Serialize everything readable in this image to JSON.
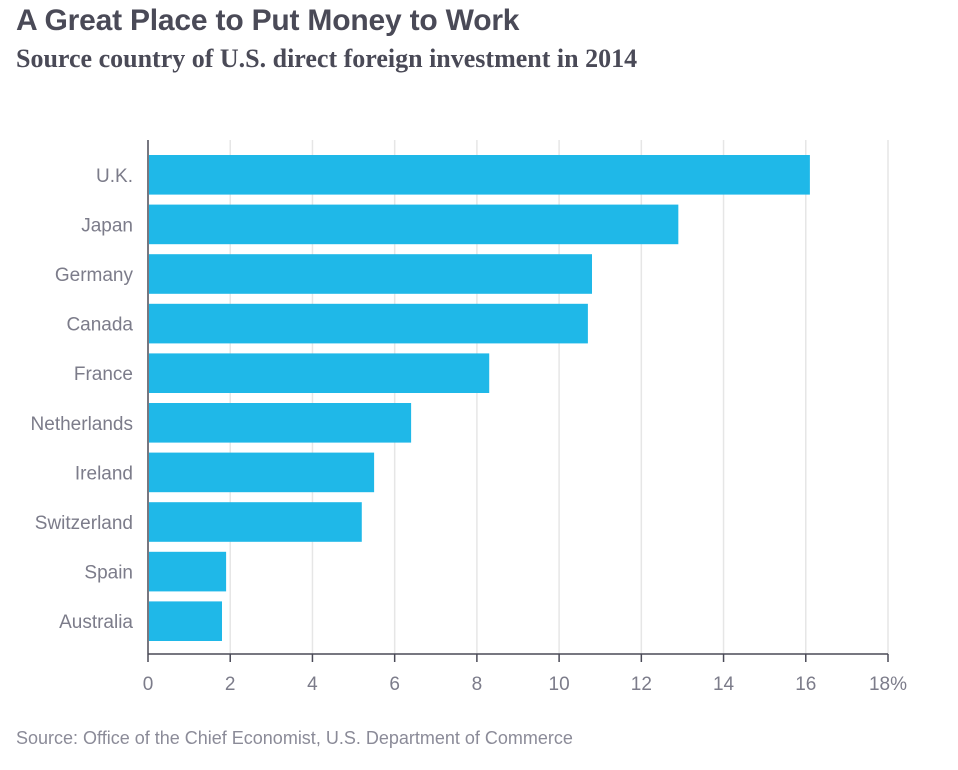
{
  "title": "A Great Place to Put Money to Work",
  "subtitle": "Source country of U.S. direct foreign investment in 2014",
  "source": "Source: Office of the Chief Economist, U.S. Department of Commerce",
  "colors": {
    "bar": "#1fb8e8",
    "grid": "#e6e6e6",
    "axis": "#4a4a57",
    "label": "#7c7c8a"
  },
  "chart_data": {
    "type": "bar",
    "orientation": "horizontal",
    "categories": [
      "U.K.",
      "Japan",
      "Germany",
      "Canada",
      "France",
      "Netherlands",
      "Ireland",
      "Switzerland",
      "Spain",
      "Australia"
    ],
    "values": [
      16.1,
      12.9,
      10.8,
      10.7,
      8.3,
      6.4,
      5.5,
      5.2,
      1.9,
      1.8
    ],
    "xlim": [
      0,
      18
    ],
    "xticks": [
      0,
      2,
      4,
      6,
      8,
      10,
      12,
      14,
      16,
      18
    ],
    "xtick_labels": [
      "0",
      "2",
      "4",
      "6",
      "8",
      "10",
      "12",
      "14",
      "16",
      "18%"
    ],
    "xlabel": "",
    "ylabel": "",
    "grid": true
  }
}
